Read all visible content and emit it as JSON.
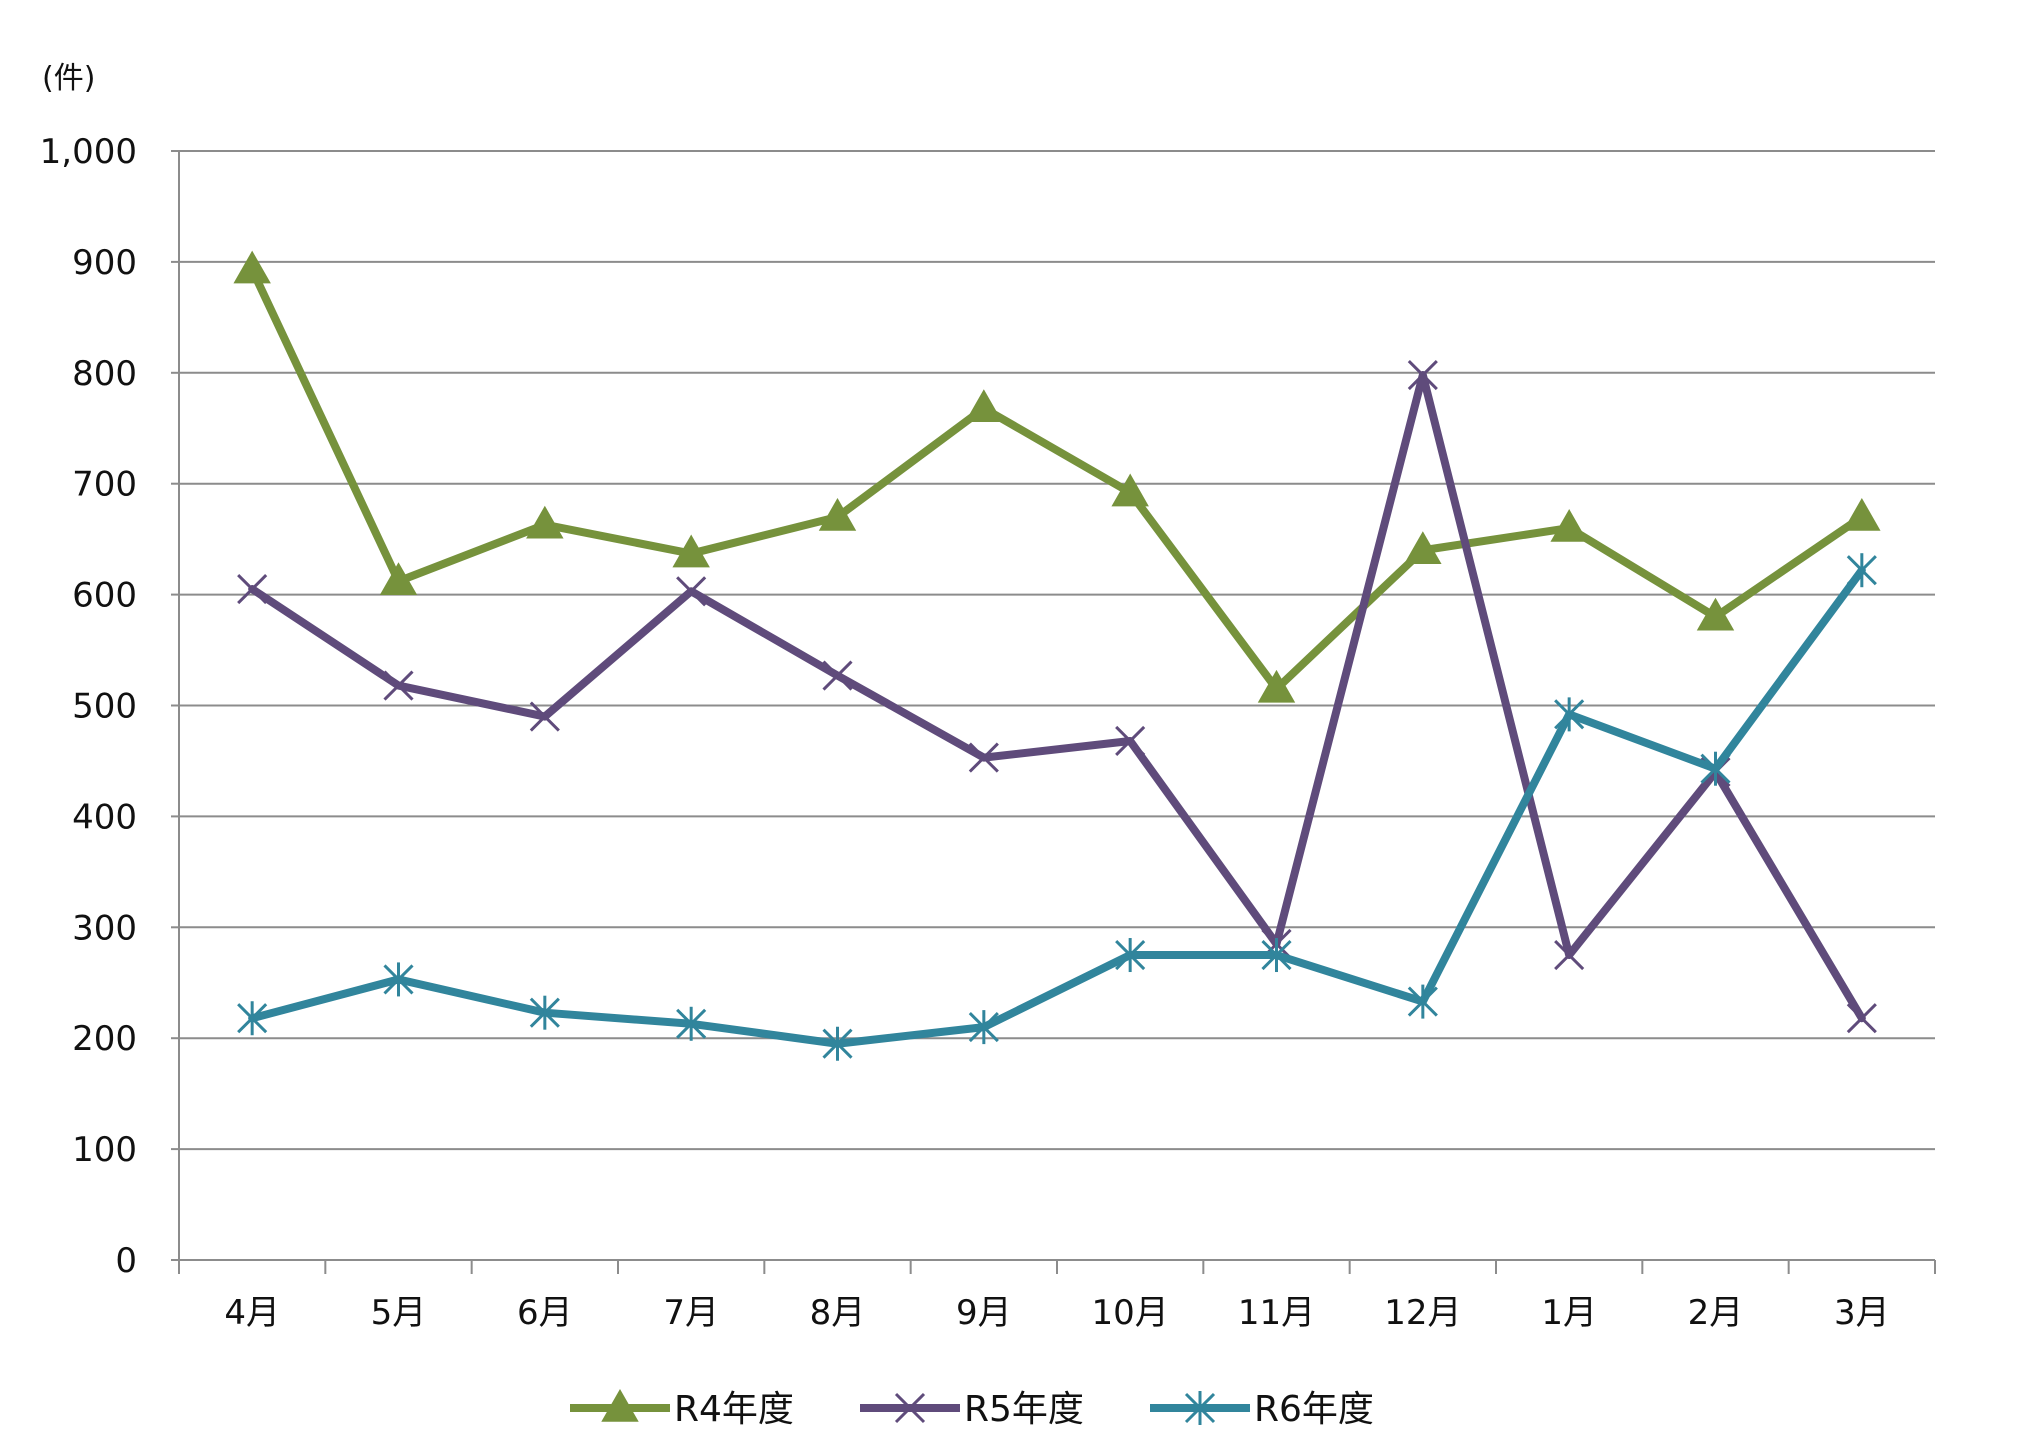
{
  "chart_data": {
    "type": "line",
    "title": "",
    "xlabel": "",
    "ylabel": "(件)",
    "ylim": [
      0,
      1000
    ],
    "yticks": [
      "0",
      "100",
      "200",
      "300",
      "400",
      "500",
      "600",
      "700",
      "800",
      "900",
      "1,000"
    ],
    "ytick_values": [
      0,
      100,
      200,
      300,
      400,
      500,
      600,
      700,
      800,
      900,
      1000
    ],
    "categories": [
      "4月",
      "5月",
      "6月",
      "7月",
      "8月",
      "9月",
      "10月",
      "11月",
      "12月",
      "1月",
      "2月",
      "3月"
    ],
    "grid": true,
    "legend_position": "bottom",
    "series": [
      {
        "name": "R4年度",
        "marker": "triangle",
        "color": "#76923c",
        "values": [
          893,
          612,
          663,
          637,
          670,
          768,
          692,
          515,
          640,
          660,
          580,
          670
        ]
      },
      {
        "name": "R5年度",
        "marker": "x",
        "color": "#5f4b7b",
        "values": [
          605,
          518,
          490,
          603,
          527,
          453,
          468,
          285,
          798,
          275,
          440,
          218
        ]
      },
      {
        "name": "R6年度",
        "marker": "star",
        "color": "#31859c",
        "values": [
          218,
          253,
          223,
          213,
          195,
          210,
          275,
          275,
          233,
          492,
          443,
          622
        ]
      }
    ]
  }
}
